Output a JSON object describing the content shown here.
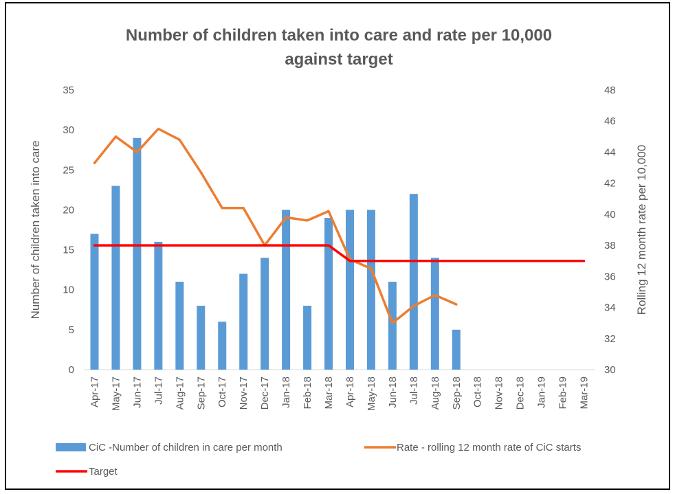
{
  "chart_data": {
    "type": "bar",
    "title_lines": [
      "Number of children taken into care and rate per 10,000",
      "against target"
    ],
    "categories": [
      "Apr-17",
      "May-17",
      "Jun-17",
      "Jul-17",
      "Aug-17",
      "Sep-17",
      "Oct-17",
      "Nov-17",
      "Dec-17",
      "Jan-18",
      "Feb-18",
      "Mar-18",
      "Apr-18",
      "May-18",
      "Jun-18",
      "Jul-18",
      "Aug-18",
      "Sep-18",
      "Oct-18",
      "Nov-18",
      "Dec-18",
      "Jan-19",
      "Feb-19",
      "Mar-19"
    ],
    "ylabel": "Number of children taken into care",
    "y2label": "Rolling 12 month rate per 10,000",
    "ylim": [
      0,
      35
    ],
    "y_ticks": [
      "0",
      "5",
      "10",
      "15",
      "20",
      "25",
      "30",
      "35"
    ],
    "y2lim": [
      30,
      48
    ],
    "y2_ticks": [
      "30",
      "32",
      "34",
      "36",
      "38",
      "40",
      "42",
      "44",
      "46",
      "48"
    ],
    "grid": false,
    "legend_position": "bottom",
    "series": [
      {
        "name": "CiC -Number of children in care per month",
        "kind": "bar",
        "axis": "left",
        "color": "#5B9BD5",
        "values": [
          17,
          23,
          29,
          16,
          11,
          8,
          6,
          12,
          14,
          20,
          8,
          19,
          20,
          20,
          11,
          22,
          14,
          5,
          null,
          null,
          null,
          null,
          null,
          null
        ]
      },
      {
        "name": "Rate - rolling 12 month rate of CiC starts",
        "kind": "line",
        "axis": "right",
        "color": "#ED7D31",
        "values": [
          43.3,
          45.0,
          44.0,
          45.5,
          44.8,
          42.7,
          40.4,
          40.4,
          38.0,
          39.8,
          39.6,
          40.2,
          37.1,
          36.5,
          33.0,
          34.1,
          34.8,
          34.2,
          null,
          null,
          null,
          null,
          null,
          null
        ]
      },
      {
        "name": "Target",
        "kind": "line",
        "axis": "right",
        "color": "#FF0000",
        "values": [
          38,
          38,
          38,
          38,
          38,
          38,
          38,
          38,
          38,
          38,
          38,
          38,
          37,
          37,
          37,
          37,
          37,
          37,
          37,
          37,
          37,
          37,
          37,
          37
        ]
      }
    ]
  }
}
